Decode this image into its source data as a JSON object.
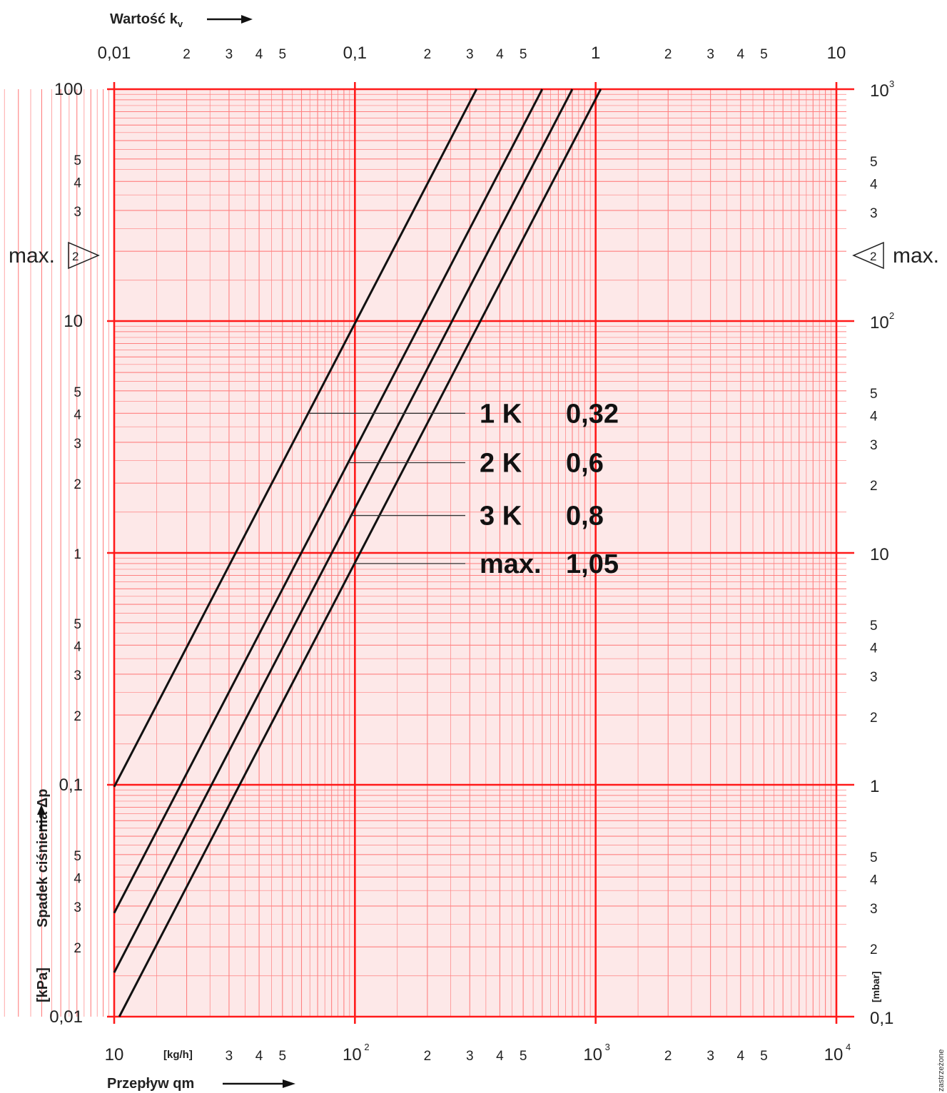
{
  "chart_data": {
    "type": "line",
    "x_top_title": "Wartość k",
    "x_top_title_sub": "v",
    "x_bottom_title": "Przepływ qm",
    "x_bottom_unit": "[kg/h]",
    "y_left_title": "Spadek ciśnienia  Δp",
    "y_left_unit": "[kPa]",
    "y_right_unit": "[mbar]",
    "x_scale": "log",
    "y_scale": "log",
    "xlim": [
      10,
      10000
    ],
    "ylim": [
      0.01,
      100
    ],
    "top_axis": [
      {
        "value": 10,
        "label": "0,01"
      },
      {
        "value": 20,
        "label": "2"
      },
      {
        "value": 30,
        "label": "3"
      },
      {
        "value": 40,
        "label": "4"
      },
      {
        "value": 50,
        "label": "5"
      },
      {
        "value": 100,
        "label": "0,1"
      },
      {
        "value": 200,
        "label": "2"
      },
      {
        "value": 300,
        "label": "3"
      },
      {
        "value": 400,
        "label": "4"
      },
      {
        "value": 500,
        "label": "5"
      },
      {
        "value": 1000,
        "label": "1"
      },
      {
        "value": 2000,
        "label": "2"
      },
      {
        "value": 3000,
        "label": "3"
      },
      {
        "value": 4000,
        "label": "4"
      },
      {
        "value": 5000,
        "label": "5"
      },
      {
        "value": 10000,
        "label": "10"
      }
    ],
    "bottom_axis": [
      {
        "value": 10,
        "label": "10",
        "sup": ""
      },
      {
        "value": 30,
        "label": "3",
        "sup": ""
      },
      {
        "value": 40,
        "label": "4",
        "sup": ""
      },
      {
        "value": 50,
        "label": "5",
        "sup": ""
      },
      {
        "value": 100,
        "label": "10",
        "sup": "2"
      },
      {
        "value": 200,
        "label": "2",
        "sup": ""
      },
      {
        "value": 300,
        "label": "3",
        "sup": ""
      },
      {
        "value": 400,
        "label": "4",
        "sup": ""
      },
      {
        "value": 500,
        "label": "5",
        "sup": ""
      },
      {
        "value": 1000,
        "label": "10",
        "sup": "3"
      },
      {
        "value": 2000,
        "label": "2",
        "sup": ""
      },
      {
        "value": 3000,
        "label": "3",
        "sup": ""
      },
      {
        "value": 4000,
        "label": "4",
        "sup": ""
      },
      {
        "value": 5000,
        "label": "5",
        "sup": ""
      },
      {
        "value": 10000,
        "label": "10",
        "sup": "4"
      }
    ],
    "left_axis": [
      {
        "value": 100,
        "label": "100"
      },
      {
        "value": 50,
        "label": "5"
      },
      {
        "value": 40,
        "label": "4"
      },
      {
        "value": 30,
        "label": "3"
      },
      {
        "value": 10,
        "label": "10"
      },
      {
        "value": 5,
        "label": "5"
      },
      {
        "value": 4,
        "label": "4"
      },
      {
        "value": 3,
        "label": "3"
      },
      {
        "value": 2,
        "label": "2"
      },
      {
        "value": 1,
        "label": "1"
      },
      {
        "value": 0.5,
        "label": "5"
      },
      {
        "value": 0.4,
        "label": "4"
      },
      {
        "value": 0.3,
        "label": "3"
      },
      {
        "value": 0.2,
        "label": "2"
      },
      {
        "value": 0.1,
        "label": "0,1"
      },
      {
        "value": 0.05,
        "label": "5"
      },
      {
        "value": 0.04,
        "label": "4"
      },
      {
        "value": 0.03,
        "label": "3"
      },
      {
        "value": 0.02,
        "label": "2"
      },
      {
        "value": 0.01,
        "label": "0,01"
      }
    ],
    "right_axis": [
      {
        "value": 100,
        "label": "10",
        "sup": "3"
      },
      {
        "value": 50,
        "label": "5",
        "sup": ""
      },
      {
        "value": 40,
        "label": "4",
        "sup": ""
      },
      {
        "value": 30,
        "label": "3",
        "sup": ""
      },
      {
        "value": 10,
        "label": "10",
        "sup": "2"
      },
      {
        "value": 5,
        "label": "5",
        "sup": ""
      },
      {
        "value": 4,
        "label": "4",
        "sup": ""
      },
      {
        "value": 3,
        "label": "3",
        "sup": ""
      },
      {
        "value": 2,
        "label": "2",
        "sup": ""
      },
      {
        "value": 1,
        "label": "10",
        "sup": ""
      },
      {
        "value": 0.5,
        "label": "5",
        "sup": ""
      },
      {
        "value": 0.4,
        "label": "4",
        "sup": ""
      },
      {
        "value": 0.3,
        "label": "3",
        "sup": ""
      },
      {
        "value": 0.2,
        "label": "2",
        "sup": ""
      },
      {
        "value": 0.1,
        "label": "1",
        "sup": ""
      },
      {
        "value": 0.05,
        "label": "5",
        "sup": ""
      },
      {
        "value": 0.04,
        "label": "4",
        "sup": ""
      },
      {
        "value": 0.03,
        "label": "3",
        "sup": ""
      },
      {
        "value": 0.02,
        "label": "2",
        "sup": ""
      },
      {
        "value": 0.01,
        "label": "0,1",
        "sup": ""
      }
    ],
    "max_marker": {
      "value": 15,
      "label": "max.",
      "symbol": "2"
    },
    "series": [
      {
        "name": "1 K",
        "kv": "0,32",
        "kv_value": 0.32,
        "points": [
          [
            10,
            0.098
          ],
          [
            320,
            100
          ]
        ]
      },
      {
        "name": "2 K",
        "kv": "0,6",
        "kv_value": 0.6,
        "points": [
          [
            10,
            0.028
          ],
          [
            600,
            100
          ]
        ]
      },
      {
        "name": "3 K",
        "kv": "0,8",
        "kv_value": 0.8,
        "points": [
          [
            10,
            0.0155
          ],
          [
            800,
            100
          ]
        ]
      },
      {
        "name": "max.",
        "kv": "1,05",
        "kv_value": 1.05,
        "points": [
          [
            10.5,
            0.01
          ],
          [
            1050,
            100
          ]
        ]
      }
    ],
    "label_leaders": [
      {
        "series": "1 K",
        "y": 4
      },
      {
        "series": "2 K",
        "y": 2.45
      },
      {
        "series": "3 K",
        "y": 1.45
      },
      {
        "series": "max.",
        "y": 0.9
      }
    ],
    "grid": true,
    "colors": {
      "grid": "#ff1a1a",
      "grid_minor": "#ff8080",
      "background": "#fde8e8",
      "lines": "#111111"
    },
    "corner_note": "zastrzeżone"
  }
}
